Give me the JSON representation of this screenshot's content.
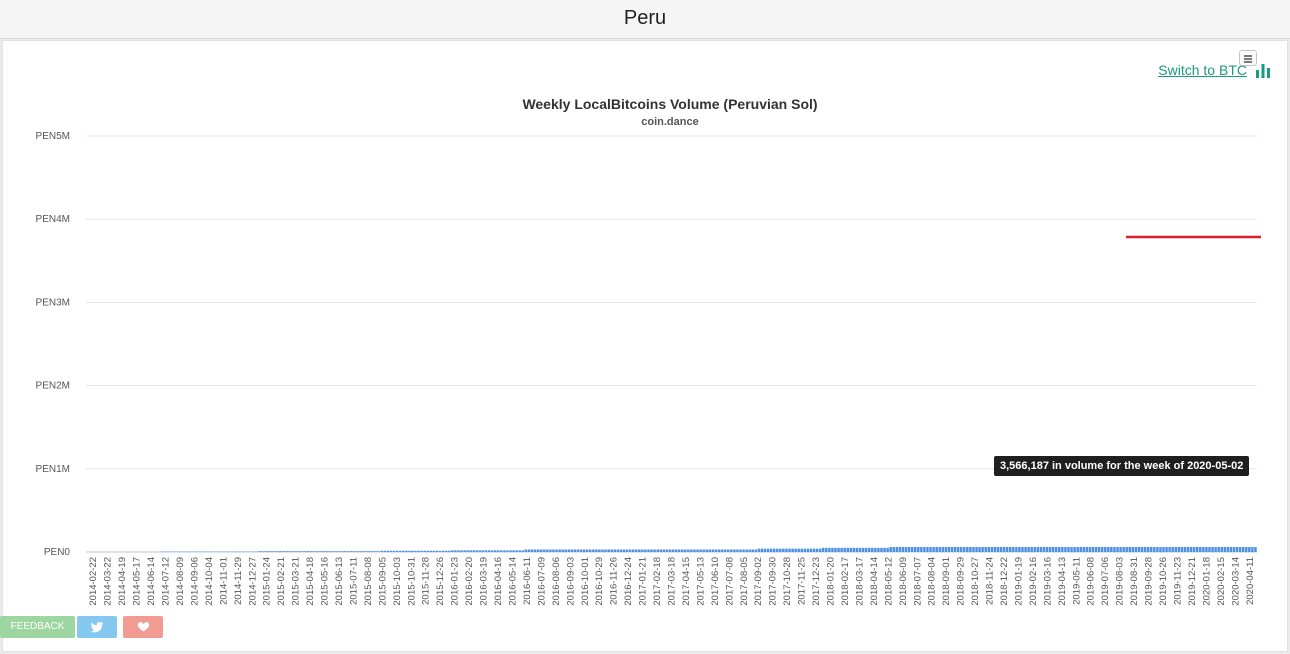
{
  "page": {
    "title": "Peru"
  },
  "switch_link": {
    "label": "Switch to BTC"
  },
  "chart_data": {
    "type": "bar",
    "title": "Weekly LocalBitcoins Volume (Peruvian Sol)",
    "subtitle": "coin.dance",
    "ylim": [
      0,
      5000000
    ],
    "y_ticks": [
      "PEN0",
      "PEN1M",
      "PEN2M",
      "PEN3M",
      "PEN4M",
      "PEN5M"
    ],
    "x_tick_labels": [
      "2014-02-22",
      "2014-03-22",
      "2014-04-19",
      "2014-05-17",
      "2014-06-14",
      "2014-07-12",
      "2014-08-09",
      "2014-09-06",
      "2014-10-04",
      "2014-11-01",
      "2014-11-29",
      "2014-12-27",
      "2015-01-24",
      "2015-02-21",
      "2015-03-21",
      "2015-04-18",
      "2015-05-16",
      "2015-06-13",
      "2015-07-11",
      "2015-08-08",
      "2015-09-05",
      "2015-10-03",
      "2015-10-31",
      "2015-11-28",
      "2015-12-26",
      "2016-01-23",
      "2016-02-20",
      "2016-03-19",
      "2016-04-16",
      "2016-05-14",
      "2016-06-11",
      "2016-07-09",
      "2016-08-06",
      "2016-09-03",
      "2016-10-01",
      "2016-10-29",
      "2016-11-26",
      "2016-12-24",
      "2017-01-21",
      "2017-02-18",
      "2017-03-18",
      "2017-04-15",
      "2017-05-13",
      "2017-06-10",
      "2017-07-08",
      "2017-08-05",
      "2017-09-02",
      "2017-09-30",
      "2017-10-28",
      "2017-11-25",
      "2017-12-23",
      "2018-01-20",
      "2018-02-17",
      "2018-03-17",
      "2018-04-14",
      "2018-05-12",
      "2018-06-09",
      "2018-07-07",
      "2018-08-04",
      "2018-09-01",
      "2018-09-29",
      "2018-10-27",
      "2018-11-24",
      "2018-12-22",
      "2019-01-19",
      "2019-02-16",
      "2019-03-16",
      "2019-04-13",
      "2019-05-11",
      "2019-06-08",
      "2019-07-06",
      "2019-08-03",
      "2019-08-31",
      "2019-09-28",
      "2019-10-26",
      "2019-11-23",
      "2019-12-21",
      "2020-01-18",
      "2020-02-15",
      "2020-03-14",
      "2020-04-11"
    ],
    "values": [
      0,
      0,
      0,
      0,
      0,
      0,
      0,
      0,
      0,
      0,
      0,
      0,
      0,
      0,
      0,
      0,
      0,
      0,
      0,
      0,
      0,
      0,
      0,
      0,
      5000,
      5000,
      5000,
      5000,
      5000,
      5000,
      5000,
      5000,
      5000,
      5000,
      5000,
      5000,
      5000,
      5000,
      5000,
      5000,
      5000,
      5000,
      5000,
      5000,
      5000,
      5000,
      5000,
      5000,
      5000,
      5000,
      5000,
      5000,
      5000,
      5000,
      5000,
      5000,
      10000,
      10000,
      10000,
      10000,
      10000,
      10000,
      10000,
      10000,
      10000,
      10000,
      10000,
      10000,
      10000,
      10000,
      10000,
      10000,
      10000,
      10000,
      10000,
      10000,
      10000,
      10000,
      10000,
      10000,
      10000,
      10000,
      10000,
      10000,
      10000,
      10000,
      10000,
      10000,
      10000,
      10000,
      10000,
      10000,
      10000,
      10000,
      10000,
      10000,
      15000,
      15000,
      15000,
      15000,
      15000,
      15000,
      15000,
      15000,
      15000,
      15000,
      15000,
      15000,
      15000,
      15000,
      15000,
      15000,
      15000,
      15000,
      15000,
      15000,
      15000,
      15000,
      15000,
      20000,
      20000,
      20000,
      20000,
      20000,
      20000,
      20000,
      20000,
      20000,
      20000,
      20000,
      20000,
      20000,
      20000,
      20000,
      20000,
      20000,
      20000,
      20000,
      20000,
      20000,
      20000,
      20000,
      20000,
      30000,
      30000,
      30000,
      30000,
      30000,
      30000,
      30000,
      30000,
      30000,
      30000,
      30000,
      30000,
      30000,
      30000,
      30000,
      30000,
      30000,
      30000,
      30000,
      30000,
      30000,
      30000,
      30000,
      30000,
      30000,
      30000,
      30000,
      30000,
      30000,
      30000,
      30000,
      30000,
      30000,
      30000,
      30000,
      30000,
      30000,
      30000,
      30000,
      30000,
      30000,
      30000,
      30000,
      30000,
      30000,
      30000,
      30000,
      30000,
      30000,
      30000,
      30000,
      30000,
      30000,
      30000,
      30000,
      30000,
      30000,
      30000,
      30000,
      30000,
      30000,
      30000,
      30000,
      30000,
      30000,
      30000,
      30000,
      30000,
      30000,
      30000,
      30000,
      30000,
      30000,
      30000,
      30000,
      30000,
      40000,
      40000,
      40000,
      40000,
      40000,
      40000,
      40000,
      40000,
      40000,
      40000,
      40000,
      40000,
      40000,
      40000,
      40000,
      40000,
      40000,
      40000,
      40000,
      40000,
      40000,
      50000,
      50000,
      50000,
      50000,
      50000,
      50000,
      50000,
      50000,
      50000,
      50000,
      50000,
      50000,
      50000,
      50000,
      50000,
      50000,
      50000,
      50000,
      50000,
      50000,
      50000,
      50000,
      60000,
      60000,
      60000,
      60000,
      60000,
      60000,
      60000,
      60000,
      60000,
      60000,
      60000,
      60000,
      60000,
      60000,
      60000,
      60000,
      60000,
      60000,
      60000,
      60000,
      60000,
      60000,
      60000,
      60000,
      60000,
      60000,
      60000,
      60000,
      60000,
      60000,
      60000,
      60000,
      60000,
      60000,
      60000,
      60000,
      60000,
      60000,
      60000,
      60000,
      60000,
      60000,
      60000,
      60000,
      60000,
      60000,
      60000,
      60000,
      60000,
      60000,
      60000,
      60000,
      60000,
      60000,
      60000,
      60000,
      60000,
      60000,
      60000,
      60000,
      60000,
      60000,
      60000,
      60000,
      60000,
      60000,
      60000,
      60000,
      60000,
      60000,
      60000,
      60000,
      60000,
      60000,
      60000,
      60000,
      60000,
      60000,
      60000,
      60000,
      60000,
      60000,
      60000,
      60000,
      60000,
      60000,
      60000,
      60000,
      60000,
      60000,
      60000,
      60000,
      60000,
      60000,
      60000,
      60000,
      60000,
      60000,
      60000,
      60000,
      60000,
      60000,
      60000,
      60000,
      60000,
      60000,
      60000,
      60000,
      60000,
      60000,
      60000,
      60000,
      60000,
      60000,
      60000,
      60000,
      60000,
      60000,
      60000,
      60000
    ],
    "values_note": "",
    "series_color": "#4b90e4",
    "reference_line_color": "#d9202a",
    "grid": true,
    "legend": "none"
  },
  "tooltip": {
    "text": "3,566,187 in volume for the week of 2020-05-02"
  },
  "feedback": {
    "label": "FEEDBACK",
    "twitter_icon": "twitter-icon",
    "heart_icon": "heart-icon"
  }
}
